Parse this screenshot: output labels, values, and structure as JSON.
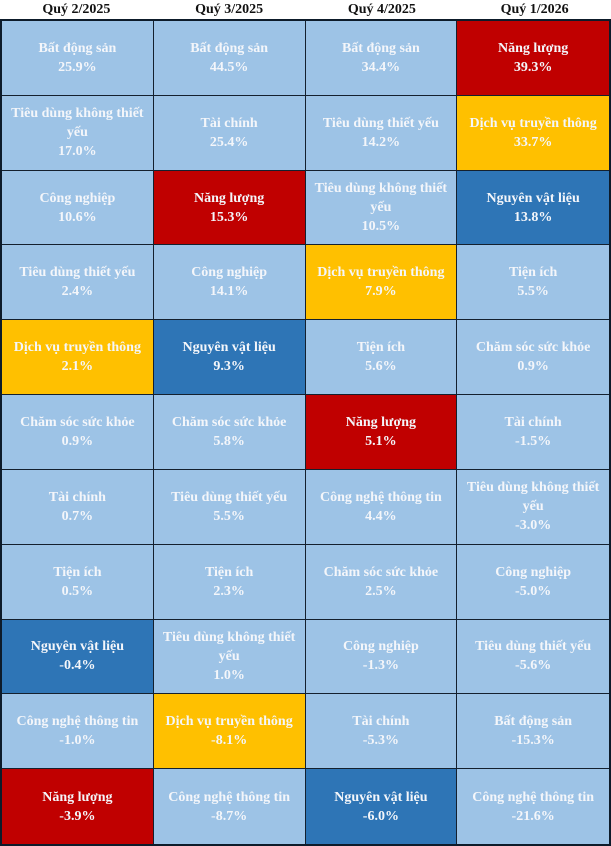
{
  "headers": [
    "Quý 2/2025",
    "Quý 3/2025",
    "Quý 4/2025",
    "Quý 1/2026"
  ],
  "colors": {
    "light": "#9dc3e6",
    "energy_red": "#c00000",
    "communication_yellow": "#ffc000",
    "materials_blue": "#2e75b6",
    "text": "#f4f6fa",
    "border": "#14202e"
  },
  "rows": [
    [
      {
        "sector": "Bất động sản",
        "value": "25.9%",
        "color": "light"
      },
      {
        "sector": "Bất động sản",
        "value": "44.5%",
        "color": "light"
      },
      {
        "sector": "Bất động sản",
        "value": "34.4%",
        "color": "light"
      },
      {
        "sector": "Năng lượng",
        "value": "39.3%",
        "color": "red"
      }
    ],
    [
      {
        "sector": "Tiêu dùng không thiết yếu",
        "value": "17.0%",
        "color": "light"
      },
      {
        "sector": "Tài chính",
        "value": "25.4%",
        "color": "light"
      },
      {
        "sector": "Tiêu dùng thiết yếu",
        "value": "14.2%",
        "color": "light"
      },
      {
        "sector": "Dịch vụ truyền thông",
        "value": "33.7%",
        "color": "yellow"
      }
    ],
    [
      {
        "sector": "Công nghiệp",
        "value": "10.6%",
        "color": "light"
      },
      {
        "sector": "Năng lượng",
        "value": "15.3%",
        "color": "red"
      },
      {
        "sector": "Tiêu dùng không thiết yếu",
        "value": "10.5%",
        "color": "light"
      },
      {
        "sector": "Nguyên vật liệu",
        "value": "13.8%",
        "color": "blue"
      }
    ],
    [
      {
        "sector": "Tiêu dùng thiết yếu",
        "value": "2.4%",
        "color": "light"
      },
      {
        "sector": "Công nghiệp",
        "value": "14.1%",
        "color": "light"
      },
      {
        "sector": "Dịch vụ truyền thông",
        "value": "7.9%",
        "color": "yellow"
      },
      {
        "sector": "Tiện ích",
        "value": "5.5%",
        "color": "light"
      }
    ],
    [
      {
        "sector": "Dịch vụ truyền thông",
        "value": "2.1%",
        "color": "yellow"
      },
      {
        "sector": "Nguyên vật liệu",
        "value": "9.3%",
        "color": "blue"
      },
      {
        "sector": "Tiện ích",
        "value": "5.6%",
        "color": "light"
      },
      {
        "sector": "Chăm sóc sức khỏe",
        "value": "0.9%",
        "color": "light"
      }
    ],
    [
      {
        "sector": "Chăm sóc sức khỏe",
        "value": "0.9%",
        "color": "light"
      },
      {
        "sector": "Chăm sóc sức khỏe",
        "value": "5.8%",
        "color": "light"
      },
      {
        "sector": "Năng lượng",
        "value": "5.1%",
        "color": "red"
      },
      {
        "sector": "Tài chính",
        "value": "-1.5%",
        "color": "light"
      }
    ],
    [
      {
        "sector": "Tài chính",
        "value": "0.7%",
        "color": "light"
      },
      {
        "sector": "Tiêu dùng thiết yếu",
        "value": "5.5%",
        "color": "light"
      },
      {
        "sector": "Công nghệ thông tin",
        "value": "4.4%",
        "color": "light"
      },
      {
        "sector": "Tiêu dùng không thiết yếu",
        "value": "-3.0%",
        "color": "light"
      }
    ],
    [
      {
        "sector": "Tiện ích",
        "value": "0.5%",
        "color": "light"
      },
      {
        "sector": "Tiện ích",
        "value": "2.3%",
        "color": "light"
      },
      {
        "sector": "Chăm sóc sức khỏe",
        "value": "2.5%",
        "color": "light"
      },
      {
        "sector": "Công nghiệp",
        "value": "-5.0%",
        "color": "light"
      }
    ],
    [
      {
        "sector": "Nguyên vật liệu",
        "value": "-0.4%",
        "color": "blue"
      },
      {
        "sector": "Tiêu dùng không thiết yếu",
        "value": "1.0%",
        "color": "light"
      },
      {
        "sector": "Công nghiệp",
        "value": "-1.3%",
        "color": "light"
      },
      {
        "sector": "Tiêu dùng thiết yếu",
        "value": "-5.6%",
        "color": "light"
      }
    ],
    [
      {
        "sector": "Công nghệ thông tin",
        "value": "-1.0%",
        "color": "light"
      },
      {
        "sector": "Dịch vụ truyền thông",
        "value": "-8.1%",
        "color": "yellow"
      },
      {
        "sector": "Tài chính",
        "value": "-5.3%",
        "color": "light"
      },
      {
        "sector": "Bất động sản",
        "value": "-15.3%",
        "color": "light"
      }
    ],
    [
      {
        "sector": "Năng lượng",
        "value": "-3.9%",
        "color": "red"
      },
      {
        "sector": "Công nghệ thông tin",
        "value": "-8.7%",
        "color": "light"
      },
      {
        "sector": "Nguyên vật liệu",
        "value": "-6.0%",
        "color": "blue"
      },
      {
        "sector": "Công nghệ thông tin",
        "value": "-21.6%",
        "color": "light"
      }
    ]
  ],
  "chart_data": {
    "type": "table",
    "title": "",
    "subtitle": "Sector performance ranking by quarter (heatmap-style table)",
    "columns": [
      "Quý 2/2025",
      "Quý 3/2025",
      "Quý 4/2025",
      "Quý 1/2026"
    ],
    "highlight_legend": {
      "Năng lượng": "#c00000",
      "Dịch vụ truyền thông": "#ffc000",
      "Nguyên vật liệu": "#2e75b6",
      "others": "#9dc3e6"
    },
    "series": [
      {
        "name": "Quý 2/2025",
        "sectors": [
          "Bất động sản",
          "Tiêu dùng không thiết yếu",
          "Công nghiệp",
          "Tiêu dùng thiết yếu",
          "Dịch vụ truyền thông",
          "Chăm sóc sức khỏe",
          "Tài chính",
          "Tiện ích",
          "Nguyên vật liệu",
          "Công nghệ thông tin",
          "Năng lượng"
        ],
        "values": [
          25.9,
          17.0,
          10.6,
          2.4,
          2.1,
          0.9,
          0.7,
          0.5,
          -0.4,
          -1.0,
          -3.9
        ]
      },
      {
        "name": "Quý 3/2025",
        "sectors": [
          "Bất động sản",
          "Tài chính",
          "Năng lượng",
          "Công nghiệp",
          "Nguyên vật liệu",
          "Chăm sóc sức khỏe",
          "Tiêu dùng thiết yếu",
          "Tiện ích",
          "Tiêu dùng không thiết yếu",
          "Dịch vụ truyền thông",
          "Công nghệ thông tin"
        ],
        "values": [
          44.5,
          25.4,
          15.3,
          14.1,
          9.3,
          5.8,
          5.5,
          2.3,
          1.0,
          -8.1,
          -8.7
        ]
      },
      {
        "name": "Quý 4/2025",
        "sectors": [
          "Bất động sản",
          "Tiêu dùng thiết yếu",
          "Tiêu dùng không thiết yếu",
          "Dịch vụ truyền thông",
          "Tiện ích",
          "Năng lượng",
          "Công nghệ thông tin",
          "Chăm sóc sức khỏe",
          "Công nghiệp",
          "Tài chính",
          "Nguyên vật liệu"
        ],
        "values": [
          34.4,
          14.2,
          10.5,
          7.9,
          5.6,
          5.1,
          4.4,
          2.5,
          -1.3,
          -5.3,
          -6.0
        ]
      },
      {
        "name": "Quý 1/2026",
        "sectors": [
          "Năng lượng",
          "Dịch vụ truyền thông",
          "Nguyên vật liệu",
          "Tiện ích",
          "Chăm sóc sức khỏe",
          "Tài chính",
          "Tiêu dùng không thiết yếu",
          "Công nghiệp",
          "Tiêu dùng thiết yếu",
          "Bất động sản",
          "Công nghệ thông tin"
        ],
        "values": [
          39.3,
          33.7,
          13.8,
          5.5,
          0.9,
          -1.5,
          -3.0,
          -5.0,
          -5.6,
          -15.3,
          -21.6
        ]
      }
    ],
    "unit": "%"
  }
}
